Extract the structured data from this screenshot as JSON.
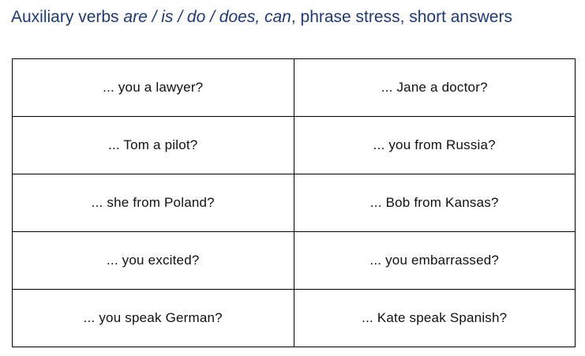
{
  "header": {
    "prefix": "Auxiliary verbs ",
    "verbs_italic": "are / is / do / does, can",
    "suffix": ", phrase stress, short answers"
  },
  "prompts": [
    [
      "... you a lawyer?",
      "... Jane a doctor?"
    ],
    [
      "... Tom a pilot?",
      "... you from Russia?"
    ],
    [
      "... she from Poland?",
      "... Bob from Kansas?"
    ],
    [
      "... you excited?",
      "... you embarrassed?"
    ],
    [
      "... you speak German?",
      "... Kate speak Spanish?"
    ]
  ]
}
